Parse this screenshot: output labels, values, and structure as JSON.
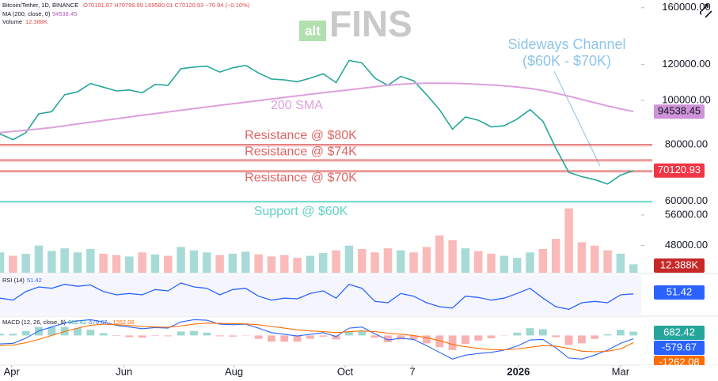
{
  "header": {
    "logo_small": "alt",
    "logo": "FINS",
    "symbol": "Bitcoin/Tether, 1D, BINANCE",
    "ohlc": "O70191.87 H70799.99 L69580.01 C70120.93 −70.94 (−0.10%)"
  },
  "chart_data": [
    {
      "type": "line",
      "log_scale": true,
      "ylim": [
        41800,
        166400
      ],
      "yticks": [
        {
          "value": 160000,
          "label": "160000.00"
        },
        {
          "value": 120000,
          "label": "120000.00"
        },
        {
          "value": 100000,
          "label": "100000.00"
        },
        {
          "value": 80000,
          "label": "80000.00"
        },
        {
          "value": 60000,
          "label": "60000.00"
        },
        {
          "value": 56000,
          "label": "56000.00"
        },
        {
          "value": 48000,
          "label": "48000.00"
        }
      ],
      "xlim": [
        0,
        49.6
      ],
      "xticks": [
        {
          "value": 0.9,
          "label": "Apr"
        },
        {
          "value": 9.6,
          "label": "Jun"
        },
        {
          "value": 18.1,
          "label": "Aug"
        },
        {
          "value": 26.7,
          "label": "Oct"
        },
        {
          "value": 31.9,
          "label": "7"
        },
        {
          "value": 40.1,
          "label": "2026"
        },
        {
          "value": 48.0,
          "label": "Mar"
        }
      ],
      "series": [
        {
          "name": "Bitcoin/Tether",
          "color": "#26a69a",
          "values": [
            84500,
            82000,
            85000,
            93500,
            94500,
            103000,
            104500,
            109000,
            107000,
            105000,
            105500,
            104000,
            108500,
            108000,
            117500,
            118500,
            119000,
            115500,
            118000,
            119500,
            115000,
            111500,
            111000,
            110000,
            112000,
            114500,
            109500,
            122500,
            121000,
            112000,
            108000,
            113000,
            110500,
            103000,
            95500,
            86500,
            92000,
            90500,
            87500,
            88000,
            91000,
            95500,
            90000,
            78500,
            69500,
            68000,
            67000,
            65500,
            68500,
            70120.93
          ]
        },
        {
          "name": "MA (200, close, 0)",
          "color": "#dda0dd",
          "values": [
            85000,
            85500,
            86000,
            86600,
            87200,
            88000,
            88800,
            89600,
            90400,
            91200,
            92000,
            92800,
            93600,
            94400,
            95200,
            96000,
            96800,
            97600,
            98400,
            99200,
            100000,
            100800,
            101600,
            102400,
            103200,
            104000,
            104800,
            105600,
            106400,
            107200,
            108000,
            108600,
            109000,
            109200,
            109200,
            109100,
            108900,
            108600,
            108200,
            107700,
            107100,
            106300,
            105200,
            103800,
            102200,
            100500,
            98900,
            97300,
            95900,
            94538.45
          ]
        }
      ],
      "levels": [
        {
          "label": "Resistance @ $80K",
          "value": 80000,
          "color": "#e06666"
        },
        {
          "label": "Resistance @ $74K",
          "value": 74000,
          "color": "#e06666"
        },
        {
          "label": "Resistance @ $70K",
          "value": 70000,
          "color": "#e06666"
        },
        {
          "label": "Support @ $60K",
          "value": 60000,
          "color": "#5fd3c5"
        }
      ],
      "annotations": {
        "sma": "200 SMA",
        "channel": [
          "Sideways Channel",
          "($60K - $70K)"
        ]
      }
    },
    {
      "type": "bar",
      "name": "Volume",
      "ylim": [
        0,
        105000
      ],
      "up_color": "#26a69a",
      "down_color": "#ef5350",
      "values": [
        30000,
        25000,
        28000,
        40000,
        32000,
        36000,
        30000,
        35000,
        28000,
        26000,
        24000,
        30000,
        27000,
        25000,
        38000,
        33000,
        30000,
        26000,
        28000,
        31000,
        27000,
        24000,
        26000,
        22000,
        25000,
        29000,
        33000,
        40000,
        35000,
        30000,
        36000,
        33000,
        30000,
        38000,
        55000,
        48000,
        36000,
        32000,
        28000,
        25000,
        22000,
        30000,
        35000,
        50000,
        95000,
        45000,
        40000,
        33000,
        28000,
        12388
      ],
      "value_labels": [
        null,
        null,
        null,
        null,
        null,
        null,
        null,
        null,
        null,
        null,
        null,
        null,
        null,
        null,
        null,
        null,
        null,
        null,
        null,
        null,
        null,
        null,
        null,
        null,
        null,
        null,
        null,
        null,
        null,
        null,
        null,
        null,
        null,
        null,
        null,
        null,
        null,
        null,
        null,
        null,
        null,
        null,
        null,
        null,
        null,
        null,
        null,
        null,
        null,
        "12.388K"
      ]
    },
    {
      "type": "line",
      "name": "RSI (14)",
      "ylim": [
        20,
        80
      ],
      "color": "#2962ff",
      "values": [
        45,
        42,
        55,
        62,
        60,
        66,
        63,
        65,
        55,
        50,
        52,
        50,
        58,
        56,
        68,
        62,
        60,
        50,
        58,
        60,
        48,
        42,
        45,
        44,
        52,
        56,
        45,
        66,
        60,
        40,
        38,
        52,
        48,
        38,
        32,
        30,
        48,
        46,
        42,
        45,
        52,
        60,
        45,
        32,
        28,
        38,
        40,
        38,
        50,
        51.42
      ]
    },
    {
      "type": "macd",
      "name": "MACD (12, 26, close, 9)",
      "ylim": [
        -5000,
        3000
      ],
      "histogram": {
        "up_color": "#26a69a",
        "down_color": "#ef5350",
        "values": [
          300,
          300,
          800,
          1500,
          1500,
          1500,
          1300,
          1000,
          400,
          -100,
          -300,
          -400,
          -100,
          -150,
          700,
          800,
          500,
          -150,
          -200,
          -50,
          -600,
          -1100,
          -1100,
          -1100,
          -600,
          -200,
          -700,
          650,
          700,
          -400,
          -1200,
          -700,
          -700,
          -1400,
          -2100,
          -2600,
          -1500,
          -900,
          -500,
          -50,
          500,
          1300,
          1100,
          -300,
          -1700,
          -1400,
          -600,
          200,
          1000,
          682.42
        ]
      },
      "macd": {
        "color": "#2962ff",
        "values": [
          -1500,
          -1400,
          -500,
          800,
          1500,
          2200,
          2600,
          2800,
          2400,
          1800,
          1500,
          1200,
          1400,
          1300,
          2400,
          2800,
          2700,
          2000,
          1900,
          2000,
          1300,
          500,
          200,
          -100,
          200,
          500,
          -200,
          1300,
          1500,
          300,
          -800,
          -500,
          -700,
          -1800,
          -3000,
          -4200,
          -3500,
          -3200,
          -3000,
          -2600,
          -1900,
          -800,
          -700,
          -2200,
          -4000,
          -4200,
          -3500,
          -2600,
          -1400,
          -579.67
        ]
      },
      "signal": {
        "color": "#ff6d00",
        "values": [
          -1800,
          -1700,
          -1300,
          -700,
          0,
          700,
          1300,
          1800,
          2000,
          1900,
          1800,
          1600,
          1500,
          1450,
          1700,
          2000,
          2200,
          2150,
          2100,
          2050,
          1900,
          1600,
          1300,
          1000,
          800,
          700,
          500,
          650,
          800,
          700,
          400,
          200,
          0,
          -400,
          -900,
          -1600,
          -2000,
          -2300,
          -2500,
          -2550,
          -2400,
          -2100,
          -1800,
          -1900,
          -2300,
          -2800,
          -2900,
          -2800,
          -2400,
          -1262.08
        ]
      }
    }
  ]
}
